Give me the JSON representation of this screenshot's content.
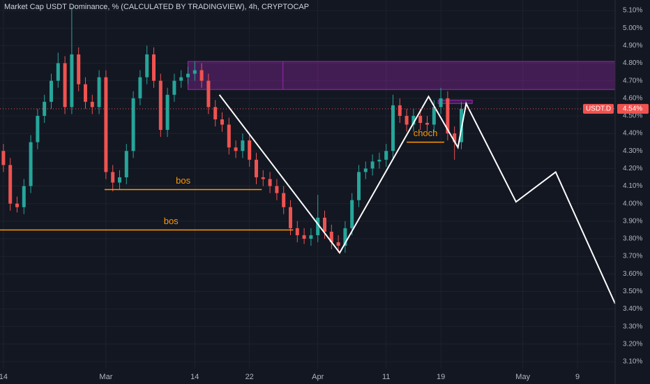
{
  "chart_data": {
    "type": "candlestick",
    "title": "Market Cap USDT Dominance, % (CALCULATED BY TRADINGVIEW), 4h, CRYPTOCAP",
    "symbol": "USDT.D",
    "last_price": {
      "value": 4.54,
      "label": "4.54%"
    },
    "up_color": "#26a69a",
    "down_color": "#ef5350",
    "x": [
      0,
      1,
      2,
      3,
      4,
      5,
      6,
      7,
      8,
      9,
      10,
      11,
      12,
      13,
      14,
      15,
      16,
      17,
      18,
      19,
      20,
      21,
      22,
      23,
      24,
      25,
      26,
      27,
      28,
      29,
      30,
      31,
      32,
      33,
      34,
      35,
      36,
      37,
      38,
      39,
      40,
      41,
      42,
      43,
      44,
      45,
      46,
      47,
      48,
      49,
      50,
      51,
      52,
      53,
      54,
      55,
      56,
      57,
      58,
      59,
      60,
      61,
      62,
      63,
      64,
      65,
      66,
      67
    ],
    "open": [
      4.3,
      4.22,
      4.0,
      3.98,
      4.1,
      4.35,
      4.5,
      4.58,
      4.7,
      4.8,
      4.55,
      4.85,
      4.68,
      4.58,
      4.55,
      4.72,
      4.18,
      4.12,
      4.15,
      4.3,
      4.6,
      4.72,
      4.85,
      4.7,
      4.42,
      4.62,
      4.7,
      4.72,
      4.74,
      4.76,
      4.7,
      4.55,
      4.48,
      4.45,
      4.32,
      4.3,
      4.36,
      4.25,
      4.15,
      4.14,
      4.1,
      4.06,
      3.98,
      3.86,
      3.82,
      3.8,
      3.82,
      3.92,
      3.84,
      3.78,
      3.76,
      3.86,
      4.02,
      4.18,
      4.2,
      4.24,
      4.25,
      4.3,
      4.56,
      4.5,
      4.45,
      4.5,
      4.46,
      4.45,
      4.55,
      4.6,
      4.4,
      4.35
    ],
    "high": [
      4.34,
      4.26,
      4.04,
      4.14,
      4.39,
      4.54,
      4.62,
      4.74,
      4.86,
      4.84,
      5.12,
      4.89,
      4.72,
      4.62,
      4.76,
      4.76,
      4.22,
      4.19,
      4.34,
      4.64,
      4.76,
      4.9,
      4.89,
      4.74,
      4.66,
      4.74,
      4.76,
      4.78,
      4.81,
      4.8,
      4.74,
      4.59,
      4.52,
      4.49,
      4.36,
      4.4,
      4.4,
      4.29,
      4.19,
      4.18,
      4.14,
      4.1,
      4.02,
      3.9,
      3.86,
      3.86,
      4.05,
      3.96,
      3.88,
      3.82,
      3.9,
      4.06,
      4.22,
      4.24,
      4.28,
      4.29,
      4.34,
      4.62,
      4.6,
      4.54,
      4.54,
      4.54,
      4.5,
      4.59,
      4.66,
      4.64,
      4.44,
      4.58
    ],
    "low": [
      4.18,
      3.96,
      3.95,
      3.94,
      4.06,
      4.31,
      4.46,
      4.54,
      4.66,
      4.51,
      4.51,
      4.64,
      4.54,
      4.51,
      4.51,
      4.14,
      4.07,
      4.08,
      4.11,
      4.26,
      4.56,
      4.68,
      4.66,
      4.38,
      4.38,
      4.58,
      4.66,
      4.68,
      4.7,
      4.66,
      4.51,
      4.44,
      4.41,
      4.28,
      4.26,
      4.26,
      4.21,
      4.11,
      4.1,
      4.06,
      4.02,
      3.94,
      3.82,
      3.78,
      3.77,
      3.76,
      3.78,
      3.8,
      3.74,
      3.72,
      3.72,
      3.82,
      3.98,
      4.14,
      4.16,
      4.2,
      4.21,
      4.26,
      4.46,
      4.41,
      4.41,
      4.42,
      4.41,
      4.41,
      4.51,
      4.36,
      4.25,
      4.31
    ],
    "close": [
      4.22,
      4.0,
      3.98,
      4.1,
      4.35,
      4.5,
      4.58,
      4.7,
      4.8,
      4.55,
      4.85,
      4.68,
      4.58,
      4.55,
      4.72,
      4.18,
      4.12,
      4.15,
      4.3,
      4.6,
      4.72,
      4.85,
      4.7,
      4.42,
      4.62,
      4.7,
      4.72,
      4.74,
      4.76,
      4.7,
      4.55,
      4.48,
      4.45,
      4.32,
      4.3,
      4.36,
      4.25,
      4.15,
      4.14,
      4.1,
      4.06,
      3.98,
      3.86,
      3.82,
      3.8,
      3.82,
      3.92,
      3.84,
      3.78,
      3.76,
      3.86,
      4.02,
      4.18,
      4.2,
      4.24,
      4.25,
      4.3,
      4.56,
      4.5,
      4.45,
      4.5,
      4.46,
      4.45,
      4.55,
      4.6,
      4.4,
      4.35,
      4.54
    ],
    "xlim": [
      -0.5,
      89.5
    ],
    "xticks": [
      {
        "value": 0,
        "label": "14"
      },
      {
        "value": 15,
        "label": "Mar"
      },
      {
        "value": 28,
        "label": "14"
      },
      {
        "value": 36,
        "label": "22"
      },
      {
        "value": 46,
        "label": "Apr"
      },
      {
        "value": 56,
        "label": "11"
      },
      {
        "value": 64,
        "label": "19"
      },
      {
        "value": 76,
        "label": "May"
      },
      {
        "value": 84,
        "label": "9"
      }
    ],
    "ylim": [
      3.06,
      5.16
    ],
    "yticks": [
      {
        "value": 3.1,
        "label": "3.10%"
      },
      {
        "value": 3.2,
        "label": "3.20%"
      },
      {
        "value": 3.3,
        "label": "3.30%"
      },
      {
        "value": 3.4,
        "label": "3.40%"
      },
      {
        "value": 3.5,
        "label": "3.50%"
      },
      {
        "value": 3.6,
        "label": "3.60%"
      },
      {
        "value": 3.7,
        "label": "3.70%"
      },
      {
        "value": 3.8,
        "label": "3.80%"
      },
      {
        "value": 3.9,
        "label": "3.90%"
      },
      {
        "value": 4.0,
        "label": "4.00%"
      },
      {
        "value": 4.1,
        "label": "4.10%"
      },
      {
        "value": 4.2,
        "label": "4.20%"
      },
      {
        "value": 4.3,
        "label": "4.30%"
      },
      {
        "value": 4.4,
        "label": "4.40%"
      },
      {
        "value": 4.5,
        "label": "4.50%"
      },
      {
        "value": 4.6,
        "label": "4.60%"
      },
      {
        "value": 4.7,
        "label": "4.70%"
      },
      {
        "value": 4.8,
        "label": "4.80%"
      },
      {
        "value": 4.9,
        "label": "4.90%"
      },
      {
        "value": 5.0,
        "label": "5.00%"
      },
      {
        "value": 5.1,
        "label": "5.10%"
      }
    ],
    "grid": true,
    "level_color": "#ff9800",
    "levels": [
      {
        "label": "bos",
        "y": 4.08,
        "x": [
          14.8,
          37.8
        ]
      },
      {
        "label": "bos",
        "y": 3.85,
        "x": [
          -0.5,
          42.4
        ]
      },
      {
        "label": "choch",
        "y": 4.35,
        "x": [
          59,
          64.5
        ]
      }
    ],
    "zone_color": "#9c27b0",
    "zones": [
      {
        "x": [
          27,
          89.5
        ],
        "y": [
          4.65,
          4.81
        ],
        "divider": 40.9
      },
      {
        "x": [
          63.6,
          68.6
        ],
        "y": [
          4.57,
          4.59
        ]
      }
    ],
    "projection": {
      "color": "#ffffff",
      "x": [
        31.6,
        49.2,
        62.2,
        66.5,
        67.7,
        75,
        80.8,
        89.5
      ],
      "values": [
        4.62,
        3.72,
        4.61,
        4.32,
        4.57,
        4.01,
        4.18,
        3.43
      ]
    }
  }
}
